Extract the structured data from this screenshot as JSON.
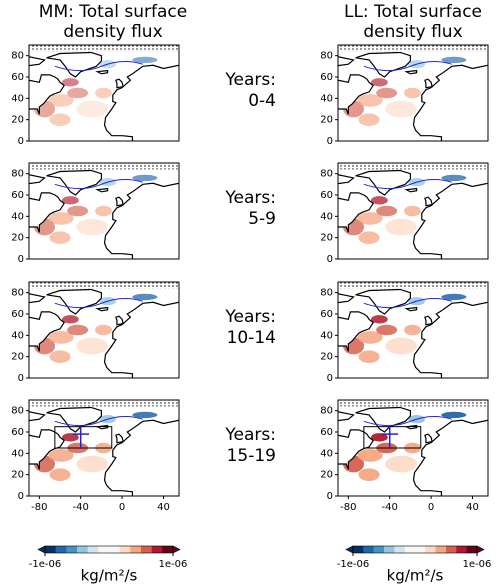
{
  "columns": [
    {
      "title": "MM: Total surface density flux"
    },
    {
      "title": "LL: Total surface density flux"
    }
  ],
  "rows": [
    {
      "label": "Years:",
      "period": "0-4"
    },
    {
      "label": "Years:",
      "period": "5-9"
    },
    {
      "label": "Years:",
      "period": "10-14"
    },
    {
      "label": "Years:",
      "period": "15-19"
    }
  ],
  "axes": {
    "xlim": [
      -90,
      55
    ],
    "ylim": [
      0,
      90
    ],
    "xticks": [
      -80,
      -40,
      0,
      40
    ],
    "yticks": [
      0,
      20,
      40,
      60,
      80
    ]
  },
  "colorbar": {
    "label": "kg/m²/s",
    "lim": [
      -1e-06,
      1e-06
    ],
    "ticks": [
      {
        "value": -1e-06,
        "label": "-1e-06"
      },
      {
        "value": 1e-06,
        "label": "1e-06"
      }
    ],
    "colors": [
      "#053061",
      "#2166ac",
      "#4393c3",
      "#92c5de",
      "#d1e5f0",
      "#f7f7f7",
      "#f7f7f7",
      "#fddbc7",
      "#f4a582",
      "#d6604d",
      "#b2182b",
      "#67001f"
    ]
  }
}
